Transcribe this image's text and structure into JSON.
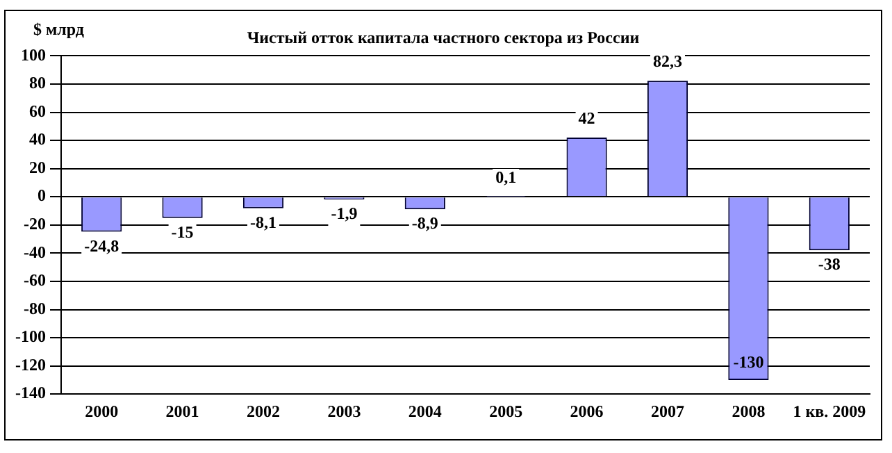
{
  "chart_data": {
    "type": "bar",
    "title": "Чистый отток капитала частного сектора из России",
    "ylabel": "$ млрд",
    "categories": [
      "2000",
      "2001",
      "2002",
      "2003",
      "2004",
      "2005",
      "2006",
      "2007",
      "2008",
      "1 кв. 2009"
    ],
    "values": [
      -24.8,
      -15,
      -8.1,
      -1.9,
      -8.9,
      0.1,
      42,
      82.3,
      -130,
      -38
    ],
    "value_labels": [
      "-24,8",
      "-15",
      "-8,1",
      "-1,9",
      "-8,9",
      "0,1",
      "42",
      "82,3",
      "-130",
      "-38"
    ],
    "color": "#9999ff",
    "ylim": [
      -140,
      100
    ],
    "yticks": [
      -140,
      -120,
      -100,
      -80,
      -60,
      -40,
      -20,
      0,
      20,
      40,
      60,
      80,
      100
    ],
    "grid": "y",
    "legend": false
  }
}
